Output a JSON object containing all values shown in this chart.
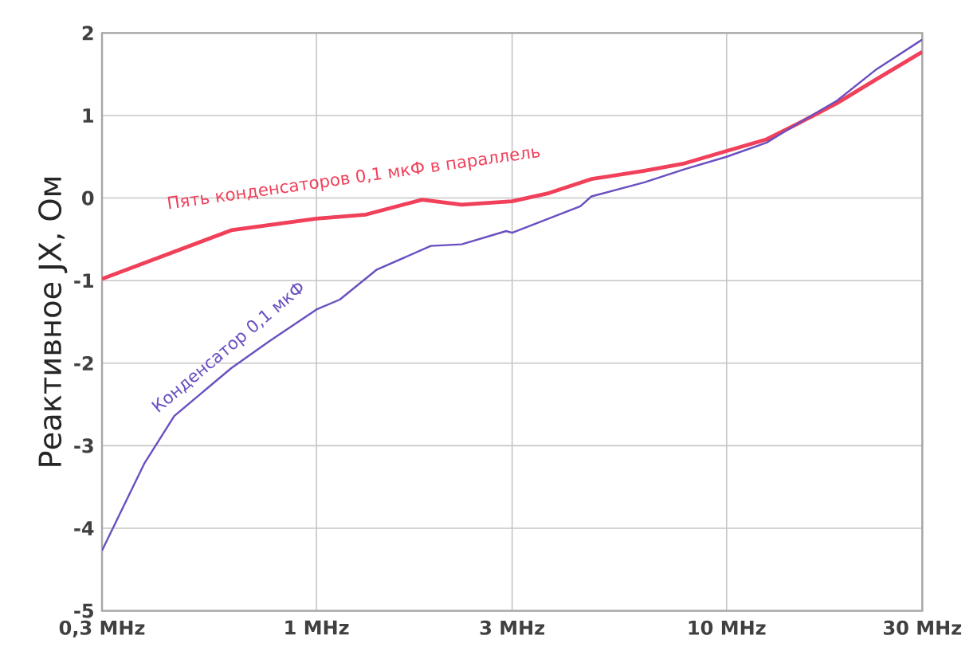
{
  "chart_data": {
    "type": "line",
    "ylabel": "Реактивное JX, Ом",
    "log": "x",
    "grid": true,
    "line_style": "solid",
    "marker": "none",
    "xlim": [
      0.3,
      30
    ],
    "ylim": [
      -5,
      2
    ],
    "xticks": [
      {
        "value": 0.3,
        "label": "0,3 MHz"
      },
      {
        "value": 1,
        "label": "1 MHz"
      },
      {
        "value": 3,
        "label": "3 MHz"
      },
      {
        "value": 10,
        "label": "10 MHz"
      },
      {
        "value": 30,
        "label": "30 MHz"
      }
    ],
    "yticks": [
      -5,
      -4,
      -3,
      -2,
      -1,
      0,
      1,
      2
    ],
    "series": [
      {
        "color": "#f0405a",
        "x": [
          0.3,
          0.62,
          1.0,
          1.32,
          1.81,
          2.26,
          3.0,
          3.69,
          4.68,
          6.3,
          7.9,
          10,
          12.5,
          14.9,
          18.6,
          23.2,
          30
        ],
        "values": [
          -0.98,
          -0.39,
          -0.25,
          -0.2,
          -0.02,
          -0.08,
          -0.04,
          0.06,
          0.23,
          0.33,
          0.42,
          0.57,
          0.71,
          0.9,
          1.15,
          1.44,
          1.77
        ]
      },
      {
        "color": "#6a4fc0",
        "x": [
          0.3,
          0.38,
          0.45,
          0.62,
          0.77,
          1.0,
          1.14,
          1.4,
          1.9,
          2.26,
          2.9,
          3.0,
          4.4,
          4.68,
          6.3,
          7.9,
          10,
          12.5,
          14.9,
          18.6,
          23.2,
          30
        ],
        "values": [
          -4.27,
          -3.22,
          -2.64,
          -2.06,
          -1.73,
          -1.35,
          -1.23,
          -0.87,
          -0.58,
          -0.56,
          -0.4,
          -0.42,
          -0.1,
          0.02,
          0.19,
          0.35,
          0.5,
          0.67,
          0.9,
          1.18,
          1.56,
          1.92
        ]
      }
    ],
    "annotations": [
      "Пять конденсаторов 0,1 мкФ в параллель",
      "Конденсатор 0,1 мкФ"
    ]
  }
}
